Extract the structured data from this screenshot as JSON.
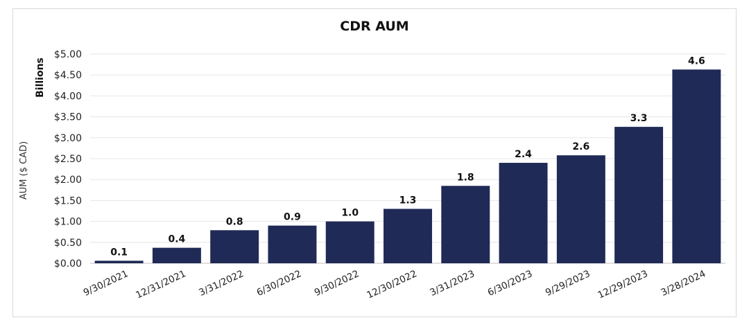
{
  "chart_data": {
    "type": "bar",
    "title": "CDR AUM",
    "ylabel": "AUM ($ CAD)",
    "yunits": "Billions",
    "xlabel": "",
    "categories": [
      "9/30/2021",
      "12/31/2021",
      "3/31/2022",
      "6/30/2022",
      "9/30/2022",
      "12/30/2022",
      "3/31/2023",
      "6/30/2023",
      "9/29/2023",
      "12/29/2023",
      "3/28/2024"
    ],
    "values": [
      0.06,
      0.37,
      0.79,
      0.9,
      1.0,
      1.3,
      1.85,
      2.4,
      2.58,
      3.26,
      4.63
    ],
    "data_labels": [
      "0.1",
      "0.4",
      "0.8",
      "0.9",
      "1.0",
      "1.3",
      "1.8",
      "2.4",
      "2.6",
      "3.3",
      "4.6"
    ],
    "ylim": [
      0,
      5
    ],
    "yticks": [
      0,
      0.5,
      1,
      1.5,
      2,
      2.5,
      3,
      3.5,
      4,
      4.5,
      5
    ],
    "ytick_labels": [
      "$0.00",
      "$0.50",
      "$1.00",
      "$1.50",
      "$2.00",
      "$2.50",
      "$3.00",
      "$3.50",
      "$4.00",
      "$4.50",
      "$5.00"
    ],
    "bar_color": "#1f2a56",
    "grid": true,
    "legend": "none"
  }
}
